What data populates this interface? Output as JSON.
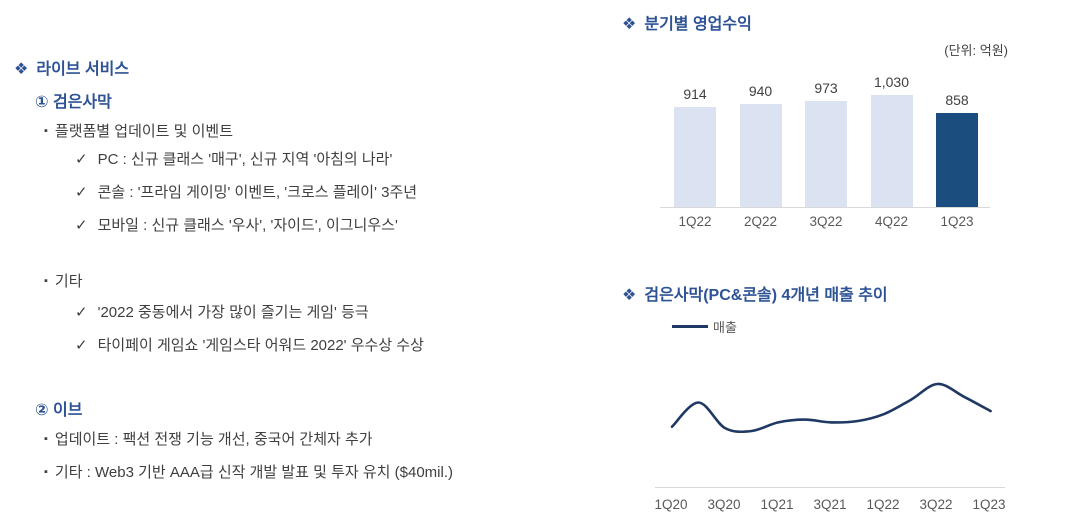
{
  "glyphs": {
    "section_bullet": "❖",
    "square_bullet": "▪",
    "check": "✓"
  },
  "colors": {
    "heading_blue": "#2e5395",
    "body_text": "#3f3f3f",
    "bar_light": "#dbe2f1",
    "bar_dark": "#1b4d7e",
    "line_navy": "#1f3864",
    "axis_gray": "#d9d9d9",
    "tick_gray": "#595959"
  },
  "left_panel": {
    "title": "라이브 서비스",
    "item1_heading": "① 검은사막",
    "group1_label": "플랫폼별 업데이트 및 이벤트",
    "group1_checks": [
      "PC : 신규 클래스 '매구', 신규 지역 '아침의 나라'",
      "콘솔 : '프라임 게이밍' 이벤트, '크로스 플레이' 3주년",
      "모바일 : 신규 클래스 '우사', '자이드', 이그니우스'"
    ],
    "group2_label": "기타",
    "group2_checks": [
      "'2022 중동에서 가장 많이 즐기는 게임' 등극",
      "타이페이 게임쇼 '게임스타 어워드 2022' 우수상 수상"
    ],
    "item2_heading": "② 이브",
    "item2_bullets": [
      "업데이트 : 팩션 전쟁 기능 개선, 중국어 간체자 추가",
      "기타 : Web3 기반 AAA급 신작 개발 발표 및 투자 유치 ($40mil.)"
    ]
  },
  "chart_data": [
    {
      "type": "bar",
      "title": "분기별 영업수익",
      "unit_label": "(단위: 억원)",
      "categories": [
        "1Q22",
        "2Q22",
        "3Q22",
        "4Q22",
        "1Q23"
      ],
      "values": [
        914,
        940,
        973,
        1030,
        858
      ],
      "value_labels": [
        "914",
        "940",
        "973",
        "1,030",
        "858"
      ],
      "highlight_index": 4,
      "bar_color": "#dbe2f1",
      "highlight_color": "#1b4d7e",
      "ylim": [
        0,
        1100
      ],
      "gridlines": false,
      "legend_position": "none",
      "value_labels_position": "above-bars"
    },
    {
      "type": "line",
      "title": "검은사막(PC&콘솔) 4개년 매출 추이",
      "x": [
        "1Q20",
        "2Q20",
        "3Q20",
        "4Q20",
        "1Q21",
        "2Q21",
        "3Q21",
        "4Q21",
        "1Q22",
        "2Q22",
        "3Q22",
        "4Q22",
        "1Q23"
      ],
      "x_tick_labels": [
        "1Q20",
        "3Q20",
        "1Q21",
        "3Q21",
        "1Q22",
        "3Q22",
        "1Q23"
      ],
      "series": [
        {
          "name": "매출",
          "values": [
            45,
            62,
            44,
            42,
            48,
            50,
            48,
            49,
            54,
            64,
            75,
            66,
            56
          ]
        }
      ],
      "y_axis": "unlabeled (values are relative estimates, arbitrary units)",
      "line_color": "#1f3864",
      "smooth": true,
      "gridlines": false,
      "legend_position": "top-left"
    }
  ]
}
